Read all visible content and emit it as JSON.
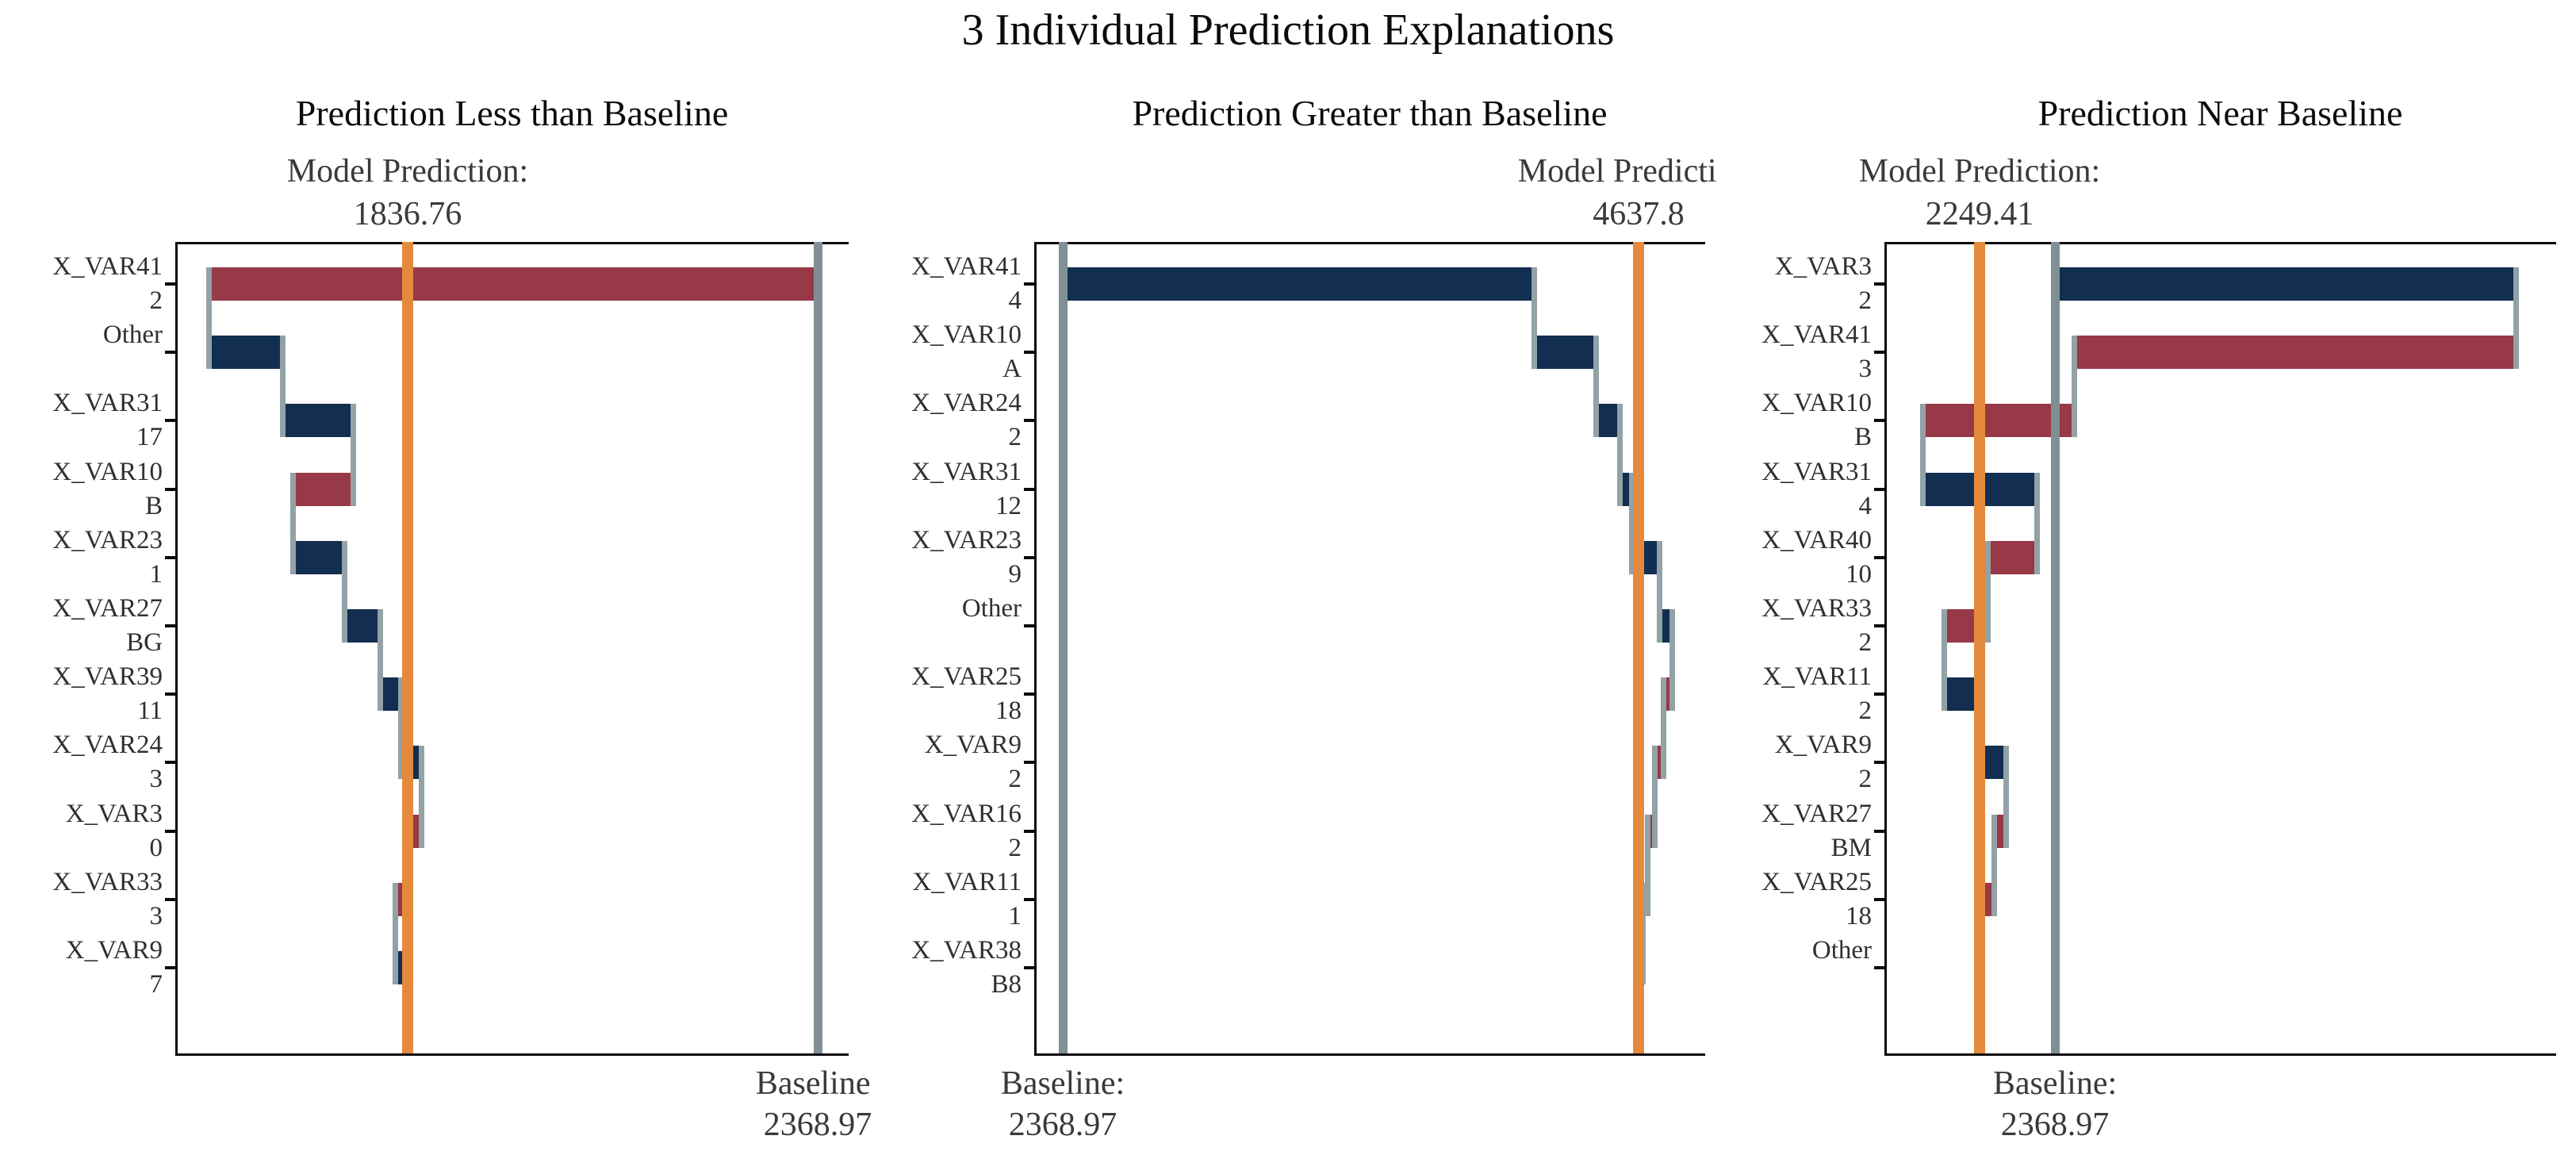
{
  "chart_title": "3 Individual Prediction Explanations",
  "colors": {
    "positive_bar": "#122E50",
    "negative_bar": "#973947",
    "prediction_line": "#E58A3C",
    "baseline_line": "#7E9095",
    "connector": "#92A2A7",
    "axis": "#0B0B0B",
    "title_text": "#0B0B0B",
    "annotation_text": "#3A3A3A",
    "label_text": "#303030"
  },
  "chart_data": [
    {
      "type": "bar",
      "subtype": "horizontal-waterfall",
      "title": "Prediction Less than Baseline",
      "model_prediction_label": "Model Prediction:",
      "model_prediction_value": "1836.76",
      "baseline_label": "Baseline:",
      "baseline_value": "2368.97",
      "prediction": 1836.76,
      "baseline": 2368.97,
      "xlim": [
        1545,
        2409
      ],
      "grid": false,
      "legend": false,
      "rows": [
        {
          "feature": "X_VAR41",
          "value": "2",
          "contribution": -789.6
        },
        {
          "feature": "Other",
          "value": "",
          "contribution": 95.0
        },
        {
          "feature": "X_VAR31",
          "value": "17",
          "contribution": 92.0
        },
        {
          "feature": "X_VAR10",
          "value": "B",
          "contribution": -78.2
        },
        {
          "feature": "X_VAR23",
          "value": "1",
          "contribution": 66.7
        },
        {
          "feature": "X_VAR27",
          "value": "BG",
          "contribution": 46.3
        },
        {
          "feature": "X_VAR39",
          "value": "11",
          "contribution": 26.6
        },
        {
          "feature": "X_VAR24",
          "value": "3",
          "contribution": 26.8
        },
        {
          "feature": "X_VAR3",
          "value": "0",
          "contribution": -21.6
        },
        {
          "feature": "X_VAR33",
          "value": "3",
          "contribution": -12.4
        },
        {
          "feature": "X_VAR9",
          "value": "7",
          "contribution": 16.2
        }
      ]
    },
    {
      "type": "bar",
      "subtype": "horizontal-waterfall",
      "title": "Prediction Greater than Baseline",
      "model_prediction_label": "Model Prediction:",
      "model_prediction_value": "4637.8",
      "baseline_label": "Baseline:",
      "baseline_value": "2368.97",
      "prediction": 4637.8,
      "baseline": 2368.97,
      "xlim": [
        2244,
        4901
      ],
      "grid": false,
      "legend": false,
      "rows": [
        {
          "feature": "X_VAR41",
          "value": "4",
          "contribution": 1858.3
        },
        {
          "feature": "X_VAR10",
          "value": "A",
          "contribution": 244.5
        },
        {
          "feature": "X_VAR24",
          "value": "2",
          "contribution": 94.0
        },
        {
          "feature": "X_VAR31",
          "value": "12",
          "contribution": 47.0
        },
        {
          "feature": "X_VAR23",
          "value": "9",
          "contribution": 106.6
        },
        {
          "feature": "Other",
          "value": "",
          "contribution": 50.1
        },
        {
          "feature": "X_VAR25",
          "value": "18",
          "contribution": -34.5
        },
        {
          "feature": "X_VAR9",
          "value": "2",
          "contribution": -34.5
        },
        {
          "feature": "X_VAR16",
          "value": "2",
          "contribution": -28.2
        },
        {
          "feature": "X_VAR11",
          "value": "1",
          "contribution": -18.8
        },
        {
          "feature": "X_VAR38",
          "value": "B8",
          "contribution": -15.7
        }
      ]
    },
    {
      "type": "bar",
      "subtype": "horizontal-waterfall",
      "title": "Prediction Near Baseline",
      "model_prediction_label": "Model Prediction:",
      "model_prediction_value": "2249.41",
      "baseline_label": "Baseline:",
      "baseline_value": "2368.97",
      "prediction": 2249.41,
      "baseline": 2368.97,
      "xlim": [
        2099,
        3151
      ],
      "grid": false,
      "legend": false,
      "rows": [
        {
          "feature": "X_VAR3",
          "value": "2",
          "contribution": 732.34
        },
        {
          "feature": "X_VAR41",
          "value": "3",
          "contribution": -701.1
        },
        {
          "feature": "X_VAR10",
          "value": "B",
          "contribution": -240.4
        },
        {
          "feature": "X_VAR31",
          "value": "4",
          "contribution": 180.6
        },
        {
          "feature": "X_VAR40",
          "value": "10",
          "contribution": -78.4
        },
        {
          "feature": "X_VAR33",
          "value": "2",
          "contribution": -68.5
        },
        {
          "feature": "X_VAR11",
          "value": "2",
          "contribution": 56.0
        },
        {
          "feature": "X_VAR9",
          "value": "2",
          "contribution": 42.3
        },
        {
          "feature": "X_VAR27",
          "value": "BM",
          "contribution": -18.7
        },
        {
          "feature": "X_VAR25",
          "value": "18",
          "contribution": -18.7
        },
        {
          "feature": "Other",
          "value": "",
          "contribution": -5.0
        }
      ]
    }
  ]
}
